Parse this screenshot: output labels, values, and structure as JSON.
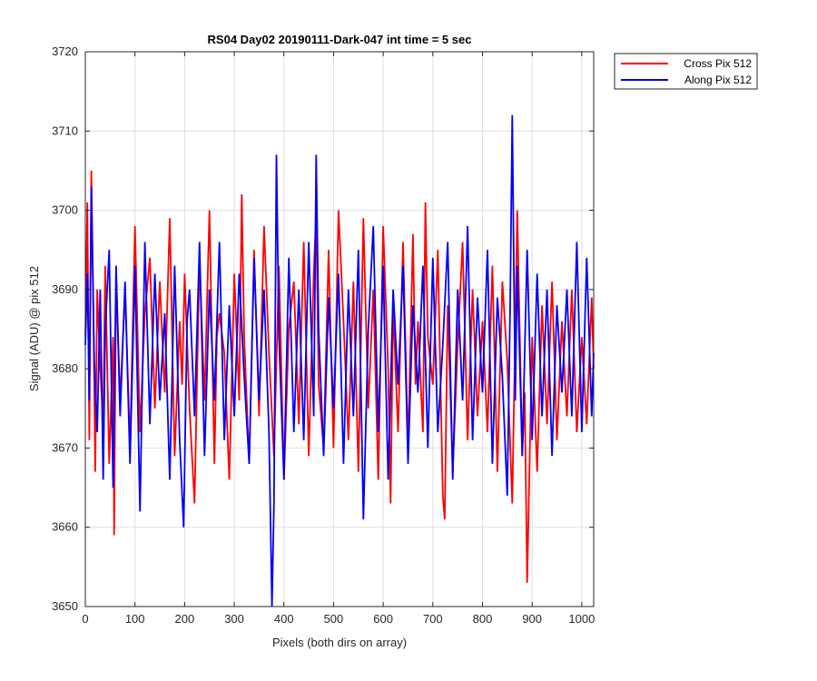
{
  "chart_data": {
    "type": "line",
    "title": "RS04 Day02 20190111-Dark-047 int time = 5 sec",
    "xlabel": "Pixels (both dirs on array)",
    "ylabel": "Signal (ADU) @ pix 512",
    "xlim": [
      0,
      1024
    ],
    "ylim": [
      3650,
      3720
    ],
    "xticks": [
      0,
      100,
      200,
      300,
      400,
      500,
      600,
      700,
      800,
      900,
      1000
    ],
    "yticks": [
      3650,
      3660,
      3670,
      3680,
      3690,
      3700,
      3710,
      3720
    ],
    "grid": true,
    "legend_position": "outside-top-right",
    "series": [
      {
        "name": "Cross Pix 512",
        "color": "#ff0000",
        "x": [
          0,
          4,
          8,
          12,
          16,
          20,
          24,
          30,
          36,
          40,
          48,
          56,
          58,
          62,
          70,
          80,
          90,
          100,
          110,
          120,
          130,
          140,
          150,
          160,
          170,
          180,
          190,
          195,
          200,
          210,
          220,
          230,
          240,
          250,
          260,
          265,
          270,
          280,
          290,
          300,
          310,
          315,
          320,
          330,
          340,
          350,
          360,
          370,
          380,
          390,
          400,
          410,
          420,
          430,
          440,
          450,
          460,
          465,
          470,
          480,
          490,
          500,
          510,
          520,
          530,
          540,
          550,
          560,
          570,
          580,
          590,
          600,
          610,
          615,
          620,
          630,
          640,
          650,
          660,
          665,
          670,
          680,
          685,
          690,
          700,
          710,
          720,
          724,
          730,
          740,
          750,
          760,
          770,
          780,
          790,
          800,
          810,
          820,
          830,
          840,
          850,
          860,
          870,
          880,
          885,
          890,
          900,
          910,
          920,
          930,
          940,
          950,
          960,
          970,
          980,
          990,
          1000,
          1010,
          1020,
          1024
        ],
        "y": [
          3684,
          3701,
          3671,
          3705,
          3688,
          3667,
          3690,
          3680,
          3673,
          3693,
          3668,
          3684,
          3659,
          3692,
          3676,
          3690,
          3670,
          3698,
          3672,
          3687,
          3694,
          3675,
          3691,
          3677,
          3699,
          3669,
          3686,
          3678,
          3692,
          3675,
          3663,
          3694,
          3676,
          3700,
          3668,
          3684,
          3687,
          3682,
          3666,
          3692,
          3676,
          3702,
          3684,
          3668,
          3695,
          3674,
          3698,
          3682,
          3669,
          3693,
          3666,
          3685,
          3691,
          3673,
          3696,
          3669,
          3692,
          3700,
          3678,
          3670,
          3695,
          3670,
          3700,
          3686,
          3671,
          3691,
          3667,
          3699,
          3675,
          3690,
          3666,
          3698,
          3680,
          3663,
          3688,
          3672,
          3696,
          3670,
          3697,
          3678,
          3686,
          3672,
          3701,
          3684,
          3678,
          3695,
          3664,
          3661,
          3688,
          3667,
          3683,
          3696,
          3671,
          3690,
          3674,
          3686,
          3672,
          3693,
          3667,
          3691,
          3681,
          3663,
          3700,
          3669,
          3677,
          3653,
          3684,
          3667,
          3688,
          3673,
          3691,
          3671,
          3686,
          3674,
          3690,
          3672,
          3684,
          3673,
          3689,
          3680
        ]
      },
      {
        "name": "Along Pix 512",
        "color": "#0000ff",
        "x": [
          0,
          4,
          8,
          12,
          18,
          24,
          30,
          36,
          40,
          48,
          56,
          62,
          70,
          80,
          90,
          100,
          110,
          120,
          130,
          140,
          150,
          160,
          170,
          180,
          190,
          198,
          205,
          210,
          220,
          230,
          240,
          250,
          260,
          270,
          280,
          290,
          300,
          310,
          320,
          330,
          340,
          350,
          360,
          370,
          376,
          380,
          385,
          390,
          400,
          410,
          420,
          430,
          440,
          450,
          460,
          465,
          470,
          480,
          490,
          500,
          510,
          520,
          530,
          540,
          550,
          560,
          570,
          580,
          590,
          600,
          610,
          620,
          630,
          640,
          650,
          660,
          670,
          680,
          690,
          700,
          710,
          720,
          730,
          740,
          750,
          760,
          770,
          780,
          790,
          800,
          810,
          820,
          830,
          840,
          850,
          856,
          860,
          866,
          870,
          880,
          890,
          900,
          910,
          920,
          930,
          940,
          950,
          960,
          970,
          980,
          990,
          1000,
          1010,
          1020,
          1024
        ],
        "y": [
          3683,
          3692,
          3676,
          3703,
          3681,
          3672,
          3690,
          3666,
          3685,
          3695,
          3665,
          3693,
          3674,
          3691,
          3668,
          3693,
          3662,
          3696,
          3673,
          3692,
          3676,
          3687,
          3666,
          3693,
          3671,
          3660,
          3686,
          3690,
          3674,
          3696,
          3669,
          3690,
          3676,
          3696,
          3671,
          3688,
          3674,
          3692,
          3679,
          3668,
          3694,
          3676,
          3690,
          3672,
          3650,
          3663,
          3707,
          3684,
          3666,
          3694,
          3672,
          3690,
          3671,
          3696,
          3674,
          3707,
          3685,
          3669,
          3689,
          3675,
          3692,
          3668,
          3690,
          3674,
          3695,
          3661,
          3685,
          3698,
          3672,
          3693,
          3666,
          3690,
          3678,
          3693,
          3668,
          3688,
          3677,
          3693,
          3670,
          3694,
          3672,
          3683,
          3696,
          3666,
          3690,
          3676,
          3698,
          3671,
          3689,
          3677,
          3695,
          3668,
          3689,
          3679,
          3664,
          3689,
          3712,
          3676,
          3693,
          3669,
          3695,
          3671,
          3692,
          3674,
          3690,
          3669,
          3688,
          3677,
          3690,
          3674,
          3696,
          3672,
          3694,
          3674,
          3682
        ]
      }
    ]
  },
  "colors": {
    "grid": "#dfdfdf",
    "axis": "#262626",
    "background": "#ffffff"
  }
}
